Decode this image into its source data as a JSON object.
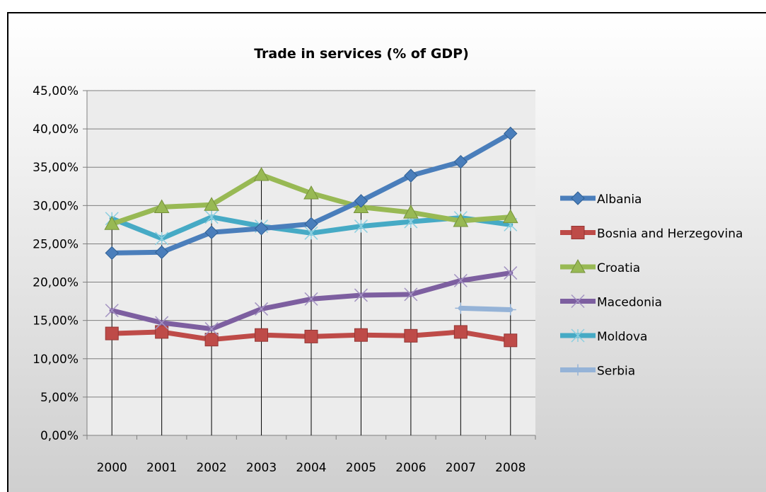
{
  "chart_data": {
    "type": "line",
    "title": "Trade  in services (% of GDP)",
    "categories": [
      "2000",
      "2001",
      "2002",
      "2003",
      "2004",
      "2005",
      "2006",
      "2007",
      "2008"
    ],
    "ylim": [
      0,
      0.45
    ],
    "yticks": [
      "0,00%",
      "5,00%",
      "10,00%",
      "15,00%",
      "20,00%",
      "25,00%",
      "30,00%",
      "35,00%",
      "40,00%",
      "45,00%"
    ],
    "grid": true,
    "legend_position": "right",
    "drop_lines": true,
    "series": [
      {
        "name": "Albania",
        "color": "#4a7ebb",
        "marker": "diamond",
        "values": [
          0.238,
          0.239,
          0.265,
          0.27,
          0.276,
          0.306,
          0.339,
          0.357,
          0.394
        ]
      },
      {
        "name": "Bosnia and Herzegovina",
        "color": "#be4b48",
        "marker": "square",
        "values": [
          0.133,
          0.135,
          0.125,
          0.131,
          0.129,
          0.131,
          0.13,
          0.135,
          0.124
        ]
      },
      {
        "name": "Croatia",
        "color": "#98b954",
        "marker": "triangle",
        "values": [
          0.276,
          0.298,
          0.301,
          0.34,
          0.316,
          0.298,
          0.291,
          0.28,
          0.285
        ]
      },
      {
        "name": "Macedonia",
        "color": "#7d5fa0",
        "marker": "x",
        "values": [
          0.163,
          0.147,
          0.139,
          0.165,
          0.178,
          0.183,
          0.184,
          0.202,
          0.212
        ]
      },
      {
        "name": "Moldova",
        "color": "#46aac5",
        "marker": "star",
        "values": [
          0.283,
          0.257,
          0.285,
          0.273,
          0.264,
          0.273,
          0.279,
          0.284,
          0.275
        ]
      },
      {
        "name": "Serbia",
        "color": "#95b3d7",
        "marker": "plus",
        "values": [
          null,
          null,
          null,
          null,
          null,
          null,
          null,
          0.166,
          0.164
        ]
      }
    ]
  },
  "colors": {
    "gridline": "#7f7f7f",
    "axis": "#7f7f7f",
    "plot_background": "#ececec"
  }
}
